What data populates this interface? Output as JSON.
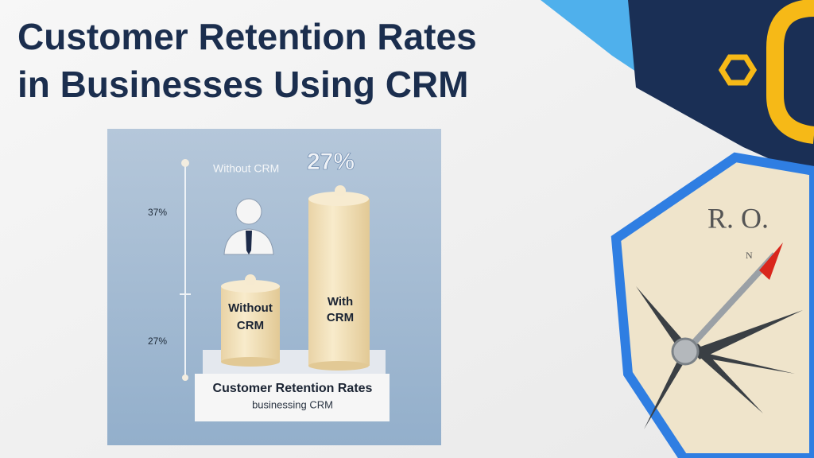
{
  "title": {
    "lines": [
      "Customer Retention Rates",
      "in Businesses Using CRM"
    ]
  },
  "illustration": {
    "header_label": "Without CRM",
    "header_value": "27%",
    "axis_labels": [
      "37%",
      "27%"
    ],
    "bars": [
      {
        "label_lines": [
          "Without",
          "CRM"
        ]
      },
      {
        "label_lines": [
          "With",
          "CRM"
        ]
      }
    ],
    "base_title": "Customer Retention Rates",
    "base_subtitle": "businessing CRM"
  },
  "compass": {
    "letters": "R. O.",
    "north": "N"
  }
}
